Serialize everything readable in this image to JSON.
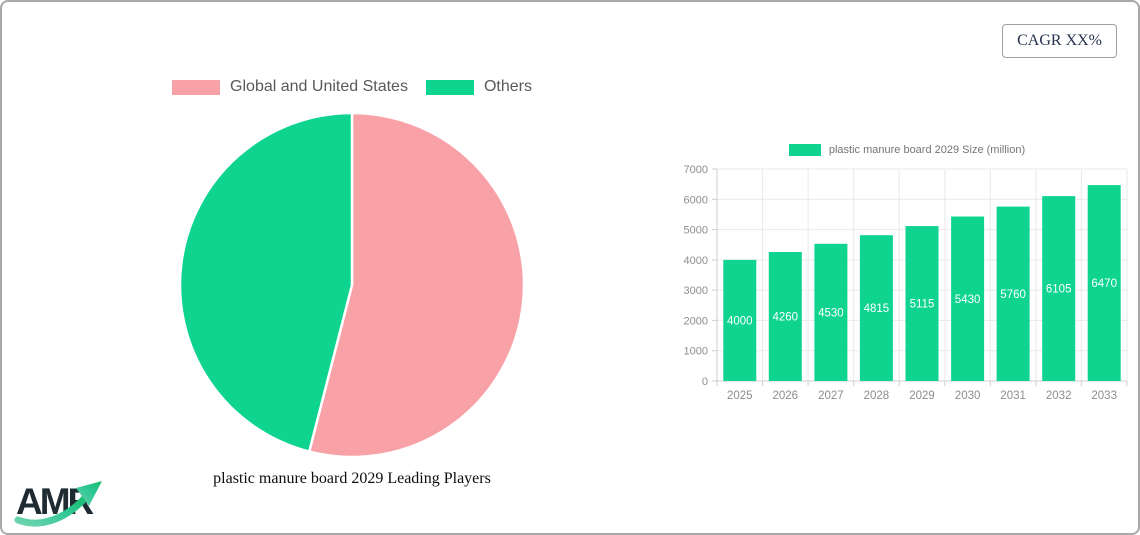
{
  "cagr_badge": {
    "label": "CAGR XX%",
    "text_color": "#26334d"
  },
  "logo": {
    "text": "AMR"
  },
  "colors": {
    "pink": "#f8a1a6",
    "green": "#0ed48f",
    "grid": "#e9e9e9",
    "axis": "#cfcfcf",
    "tick_label": "#8d8d8d",
    "legend_text": "#58595b"
  },
  "chart_data": [
    {
      "type": "pie",
      "title": "plastic manure board 2029 Leading Players",
      "legend_position": "top",
      "start_angle_deg": 0,
      "unit": "%",
      "slices": [
        {
          "label": "Global and United States",
          "value": 54,
          "color": "#f8a1a6"
        },
        {
          "label": "Others",
          "value": 46,
          "color": "#0ed48f"
        }
      ]
    },
    {
      "type": "bar",
      "legend": "plastic manure board 2029 Size (million)",
      "categories": [
        "2025",
        "2026",
        "2027",
        "2028",
        "2029",
        "2030",
        "2031",
        "2032",
        "2033"
      ],
      "values": [
        4000,
        4260,
        4530,
        4815,
        5115,
        5430,
        5760,
        6105,
        6470
      ],
      "bar_color": "#0ed48f",
      "value_label_color": "#ffffff",
      "ylim": [
        0,
        7000
      ],
      "ytick_step": 1000,
      "grid": true,
      "legend_position": "top"
    }
  ]
}
